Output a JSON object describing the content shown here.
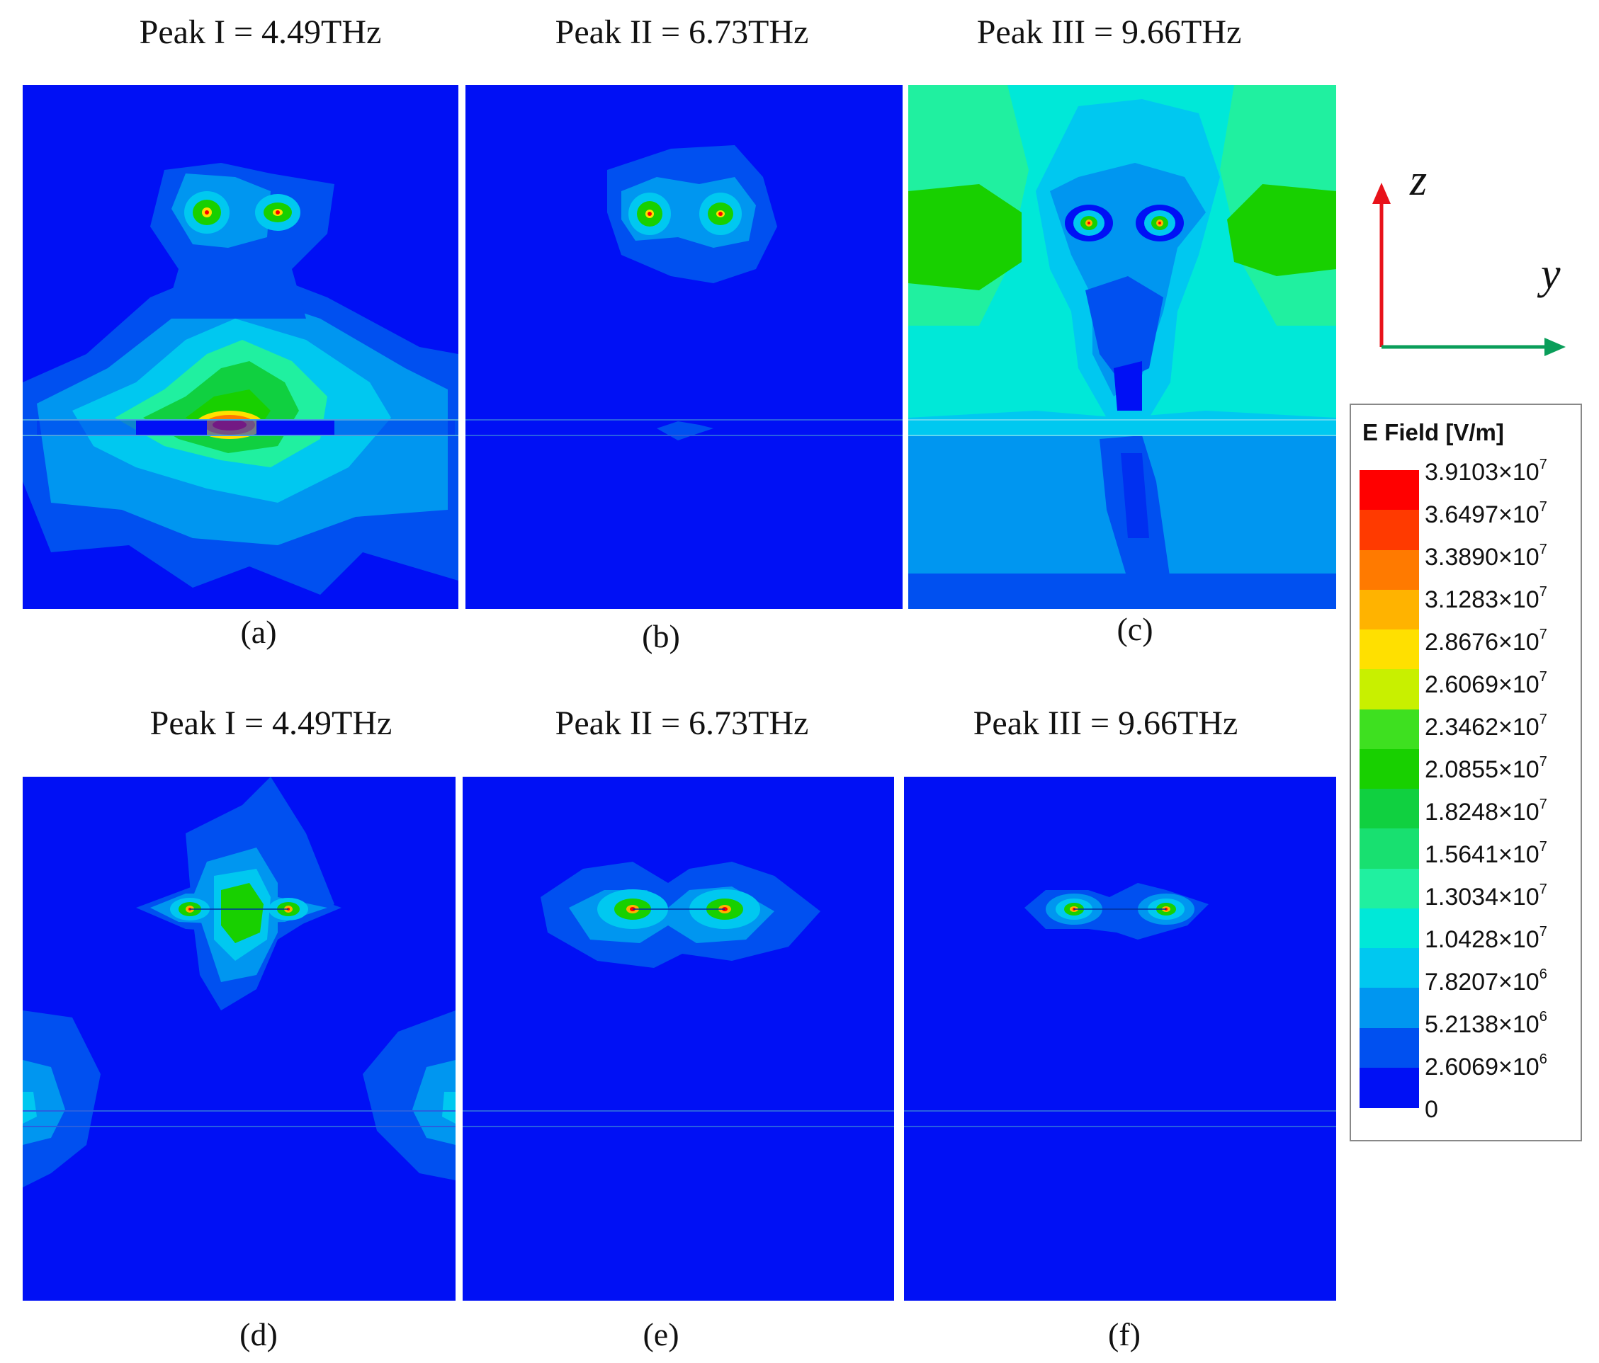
{
  "top_row": {
    "titles": [
      "Peak I = 4.49THz",
      "Peak II = 6.73THz",
      "Peak III = 9.66THz"
    ],
    "labels": [
      "(a)",
      "(b)",
      "(c)"
    ]
  },
  "bottom_row": {
    "titles": [
      "Peak I = 4.49THz",
      "Peak II = 6.73THz",
      "Peak III = 9.66THz"
    ],
    "labels": [
      "(d)",
      "(e)",
      "(f)"
    ]
  },
  "axes": {
    "vertical": "z",
    "horizontal": "y",
    "vertical_color": "#e8121a",
    "horizontal_color": "#0a9e5a"
  },
  "legend": {
    "title": "E Field [V/m]",
    "ticks": [
      {
        "mantissa": "3.9103",
        "exponent": "7"
      },
      {
        "mantissa": "3.6497",
        "exponent": "7"
      },
      {
        "mantissa": "3.3890",
        "exponent": "7"
      },
      {
        "mantissa": "3.1283",
        "exponent": "7"
      },
      {
        "mantissa": "2.8676",
        "exponent": "7"
      },
      {
        "mantissa": "2.6069",
        "exponent": "7"
      },
      {
        "mantissa": "2.3462",
        "exponent": "7"
      },
      {
        "mantissa": "2.0855",
        "exponent": "7"
      },
      {
        "mantissa": "1.8248",
        "exponent": "7"
      },
      {
        "mantissa": "1.5641",
        "exponent": "7"
      },
      {
        "mantissa": "1.3034",
        "exponent": "7"
      },
      {
        "mantissa": "1.0428",
        "exponent": "7"
      },
      {
        "mantissa": "7.8207",
        "exponent": "6"
      },
      {
        "mantissa": "5.2138",
        "exponent": "6"
      },
      {
        "mantissa": "2.6069",
        "exponent": "6"
      },
      {
        "mantissa": "0",
        "exponent": ""
      }
    ],
    "colors": [
      "#ff0000",
      "#ff3a00",
      "#ff7a00",
      "#ffb300",
      "#ffe000",
      "#c8f000",
      "#3ee020",
      "#18d000",
      "#10d040",
      "#18e070",
      "#20f0a0",
      "#00e8d8",
      "#00c8f0",
      "#0096f0",
      "#0050f0",
      "#0010f5"
    ]
  }
}
